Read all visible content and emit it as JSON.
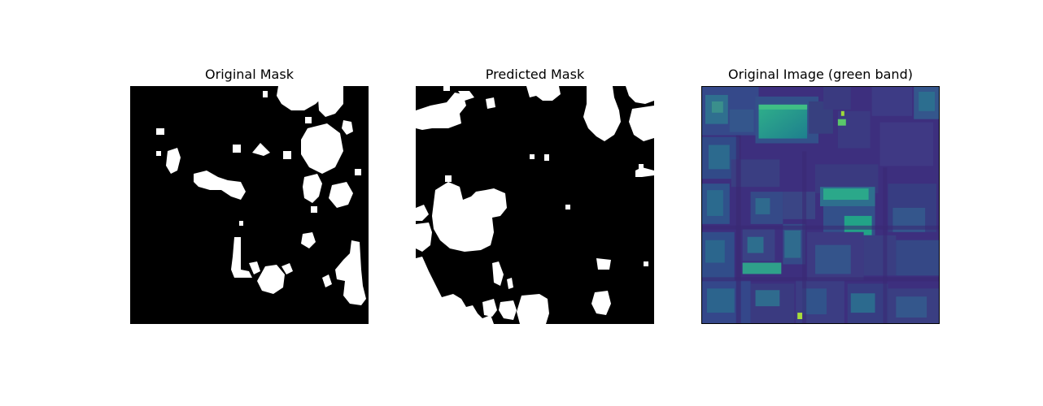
{
  "figure": {
    "panels": [
      {
        "title": "Original Mask"
      },
      {
        "title": "Predicted Mask"
      },
      {
        "title": "Original Image (green band)"
      }
    ]
  },
  "colors": {
    "background": "#ffffff",
    "mask_foreground": "#ffffff",
    "mask_background": "#000000",
    "viridis_dark": "#3b2a7a",
    "viridis_mid": "#2c6f8e",
    "viridis_teal": "#21a08a",
    "viridis_yellow": "#e3e418"
  }
}
